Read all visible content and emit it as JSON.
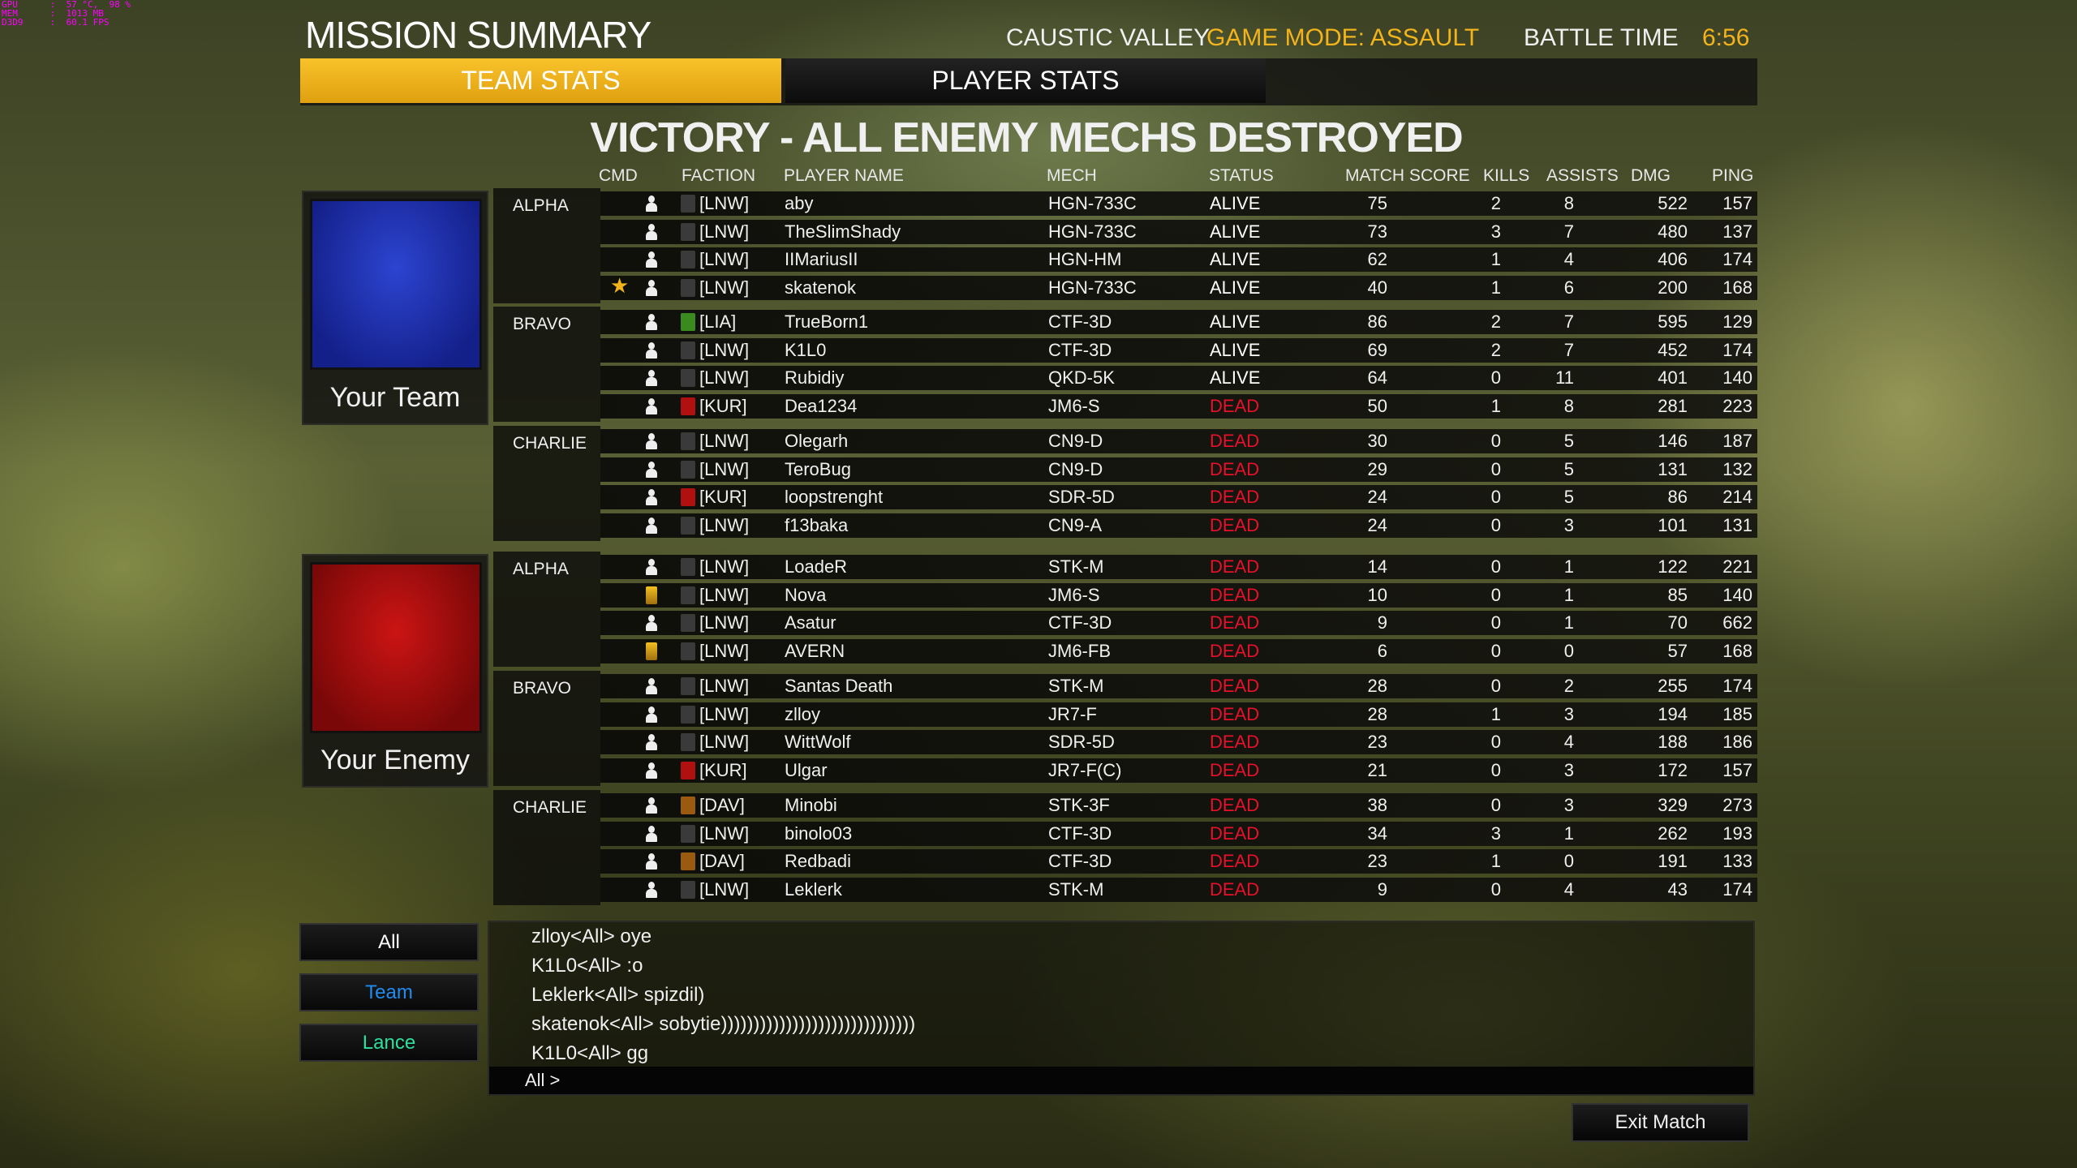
{
  "debug_overlay": {
    "gpu": "GPU      :  57 °C,  98 %",
    "mem": "MEM      :  1013 MB",
    "d3d": "D3D9     :  60.1 FPS"
  },
  "header": {
    "title": "MISSION SUMMARY",
    "map": "CAUSTIC VALLEY",
    "game_mode": "GAME MODE: ASSAULT",
    "battle_time_label": "BATTLE TIME",
    "battle_time": "6:56"
  },
  "tabs": [
    {
      "label": "TEAM STATS",
      "active": true
    },
    {
      "label": "PLAYER STATS",
      "active": false
    }
  ],
  "result": "VICTORY - ALL ENEMY MECHS DESTROYED",
  "columns": {
    "cmd": "CMD",
    "faction": "FACTION",
    "name": "PLAYER NAME",
    "mech": "MECH",
    "status": "STATUS",
    "score": "MATCH SCORE",
    "kills": "KILLS",
    "assists": "ASSISTS",
    "dmg": "DMG",
    "ping": "PING"
  },
  "colors": {
    "accent": "#f2b31c",
    "dead": "#e8102a",
    "alive": "#ffffff",
    "team_flag": "#1a2ea8",
    "enemy_flag": "#b50e0e",
    "team_channel": "#1e8cf0",
    "lance_channel": "#2ee0a0"
  },
  "teams": [
    {
      "label": "Your Team",
      "flag": "blue",
      "lances": [
        {
          "name": "ALPHA",
          "players": [
            {
              "cmd": "person-icon",
              "faction": "[LNW]",
              "name": "aby",
              "mech": "HGN-733C",
              "status": "ALIVE",
              "score": "75",
              "kills": "2",
              "assists": "8",
              "dmg": "522",
              "ping": "157"
            },
            {
              "cmd": "person-icon",
              "faction": "[LNW]",
              "name": "TheSlimShady",
              "mech": "HGN-733C",
              "status": "ALIVE",
              "score": "73",
              "kills": "3",
              "assists": "7",
              "dmg": "480",
              "ping": "137"
            },
            {
              "cmd": "person-icon",
              "faction": "[LNW]",
              "name": "IIMariusII",
              "mech": "HGN-HM",
              "status": "ALIVE",
              "score": "62",
              "kills": "1",
              "assists": "4",
              "dmg": "406",
              "ping": "174"
            },
            {
              "cmd": "person-icon",
              "commander": true,
              "faction": "[LNW]",
              "name": "skatenok",
              "mech": "HGN-733C",
              "status": "ALIVE",
              "score": "40",
              "kills": "1",
              "assists": "6",
              "dmg": "200",
              "ping": "168"
            }
          ]
        },
        {
          "name": "BRAVO",
          "players": [
            {
              "cmd": "person-icon",
              "faction": "[LIA]",
              "name": "TrueBorn1",
              "mech": "CTF-3D",
              "status": "ALIVE",
              "score": "86",
              "kills": "2",
              "assists": "7",
              "dmg": "595",
              "ping": "129"
            },
            {
              "cmd": "person-icon",
              "faction": "[LNW]",
              "name": "K1L0",
              "mech": "CTF-3D",
              "status": "ALIVE",
              "score": "69",
              "kills": "2",
              "assists": "7",
              "dmg": "452",
              "ping": "174"
            },
            {
              "cmd": "person-icon",
              "faction": "[LNW]",
              "name": "Rubidiy",
              "mech": "QKD-5K",
              "status": "ALIVE",
              "score": "64",
              "kills": "0",
              "assists": "11",
              "dmg": "401",
              "ping": "140"
            },
            {
              "cmd": "person-icon",
              "faction": "[KUR]",
              "name": "Dea1234",
              "mech": "JM6-S",
              "status": "DEAD",
              "score": "50",
              "kills": "1",
              "assists": "8",
              "dmg": "281",
              "ping": "223"
            }
          ]
        },
        {
          "name": "CHARLIE",
          "players": [
            {
              "cmd": "person-icon",
              "faction": "[LNW]",
              "name": "Olegarh",
              "mech": "CN9-D",
              "status": "DEAD",
              "score": "30",
              "kills": "0",
              "assists": "5",
              "dmg": "146",
              "ping": "187"
            },
            {
              "cmd": "person-icon",
              "faction": "[LNW]",
              "name": "TeroBug",
              "mech": "CN9-D",
              "status": "DEAD",
              "score": "29",
              "kills": "0",
              "assists": "5",
              "dmg": "131",
              "ping": "132"
            },
            {
              "cmd": "person-icon",
              "faction": "[KUR]",
              "name": "loopstrenght",
              "mech": "SDR-5D",
              "status": "DEAD",
              "score": "24",
              "kills": "0",
              "assists": "5",
              "dmg": "86",
              "ping": "214"
            },
            {
              "cmd": "person-icon",
              "faction": "[LNW]",
              "name": "f13baka",
              "mech": "CN9-A",
              "status": "DEAD",
              "score": "24",
              "kills": "0",
              "assists": "3",
              "dmg": "101",
              "ping": "131"
            }
          ]
        }
      ]
    },
    {
      "label": "Your Enemy",
      "flag": "red",
      "lances": [
        {
          "name": "ALPHA",
          "players": [
            {
              "cmd": "person-icon",
              "faction": "[LNW]",
              "name": "LoadeR",
              "mech": "STK-M",
              "status": "DEAD",
              "score": "14",
              "kills": "0",
              "assists": "1",
              "dmg": "122",
              "ping": "221"
            },
            {
              "cmd": "rank-badge-icon",
              "faction": "[LNW]",
              "name": "Nova",
              "mech": "JM6-S",
              "status": "DEAD",
              "score": "10",
              "kills": "0",
              "assists": "1",
              "dmg": "85",
              "ping": "140"
            },
            {
              "cmd": "person-icon",
              "faction": "[LNW]",
              "name": "Asatur",
              "mech": "CTF-3D",
              "status": "DEAD",
              "score": "9",
              "kills": "0",
              "assists": "1",
              "dmg": "70",
              "ping": "662"
            },
            {
              "cmd": "rank-badge-icon",
              "faction": "[LNW]",
              "name": "AVERN",
              "mech": "JM6-FB",
              "status": "DEAD",
              "score": "6",
              "kills": "0",
              "assists": "0",
              "dmg": "57",
              "ping": "168"
            }
          ]
        },
        {
          "name": "BRAVO",
          "players": [
            {
              "cmd": "person-icon",
              "faction": "[LNW]",
              "name": "Santas Death",
              "mech": "STK-M",
              "status": "DEAD",
              "score": "28",
              "kills": "0",
              "assists": "2",
              "dmg": "255",
              "ping": "174"
            },
            {
              "cmd": "person-icon",
              "faction": "[LNW]",
              "name": "zlloy",
              "mech": "JR7-F",
              "status": "DEAD",
              "score": "28",
              "kills": "1",
              "assists": "3",
              "dmg": "194",
              "ping": "185"
            },
            {
              "cmd": "person-icon",
              "faction": "[LNW]",
              "name": "WittWolf",
              "mech": "SDR-5D",
              "status": "DEAD",
              "score": "23",
              "kills": "0",
              "assists": "4",
              "dmg": "188",
              "ping": "186"
            },
            {
              "cmd": "person-icon",
              "faction": "[KUR]",
              "name": "Ulgar",
              "mech": "JR7-F(C)",
              "status": "DEAD",
              "score": "21",
              "kills": "0",
              "assists": "3",
              "dmg": "172",
              "ping": "157"
            }
          ]
        },
        {
          "name": "CHARLIE",
          "players": [
            {
              "cmd": "person-icon",
              "faction": "[DAV]",
              "name": "Minobi",
              "mech": "STK-3F",
              "status": "DEAD",
              "score": "38",
              "kills": "0",
              "assists": "3",
              "dmg": "329",
              "ping": "273"
            },
            {
              "cmd": "person-icon",
              "faction": "[LNW]",
              "name": "binolo03",
              "mech": "CTF-3D",
              "status": "DEAD",
              "score": "34",
              "kills": "3",
              "assists": "1",
              "dmg": "262",
              "ping": "193"
            },
            {
              "cmd": "person-icon",
              "faction": "[DAV]",
              "name": "Redbadi",
              "mech": "CTF-3D",
              "status": "DEAD",
              "score": "23",
              "kills": "1",
              "assists": "0",
              "dmg": "191",
              "ping": "133"
            },
            {
              "cmd": "person-icon",
              "faction": "[LNW]",
              "name": "Leklerk",
              "mech": "STK-M",
              "status": "DEAD",
              "score": "9",
              "kills": "0",
              "assists": "4",
              "dmg": "43",
              "ping": "174"
            }
          ]
        }
      ]
    }
  ],
  "chat": {
    "channels": [
      "All",
      "Team",
      "Lance"
    ],
    "messages": [
      "zlloy<All> oye",
      "K1L0<All> :o",
      "Leklerk<All> spizdil)",
      "skatenok<All> sobytie))))))))))))))))))))))))))))))",
      "K1L0<All> gg"
    ],
    "input_prefix": "All >"
  },
  "exit_button": "Exit Match"
}
